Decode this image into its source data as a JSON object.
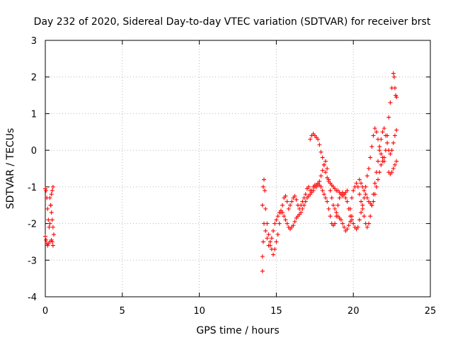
{
  "chart_data": {
    "type": "scatter",
    "title": "Day 232 of 2020, Sidereal Day-to-day VTEC variation (SDTVAR) for receiver brst",
    "xlabel": "GPS time / hours",
    "ylabel": "SDTVAR / TECUs",
    "xlim": [
      0,
      25
    ],
    "ylim": [
      -4,
      3
    ],
    "xticks": [
      "0",
      "5",
      "10",
      "15",
      "20",
      "25"
    ],
    "yticks": [
      "-4",
      "-3",
      "-2",
      "-1",
      "0",
      "1",
      "2",
      "3"
    ],
    "grid": true,
    "marker": "+",
    "color": "#ff0000",
    "series": [
      {
        "points": [
          [
            0.0,
            -1.05
          ],
          [
            0.05,
            -1.1
          ],
          [
            0.1,
            -1.3
          ],
          [
            0.15,
            -1.6
          ],
          [
            0.2,
            -1.9
          ],
          [
            0.25,
            -2.1
          ],
          [
            0.3,
            -2.0
          ],
          [
            0.35,
            -1.5
          ],
          [
            0.4,
            -1.2
          ],
          [
            0.45,
            -1.1
          ],
          [
            0.5,
            -1.0
          ],
          [
            0.0,
            -2.35
          ],
          [
            0.05,
            -2.45
          ],
          [
            0.1,
            -2.55
          ],
          [
            0.15,
            -2.6
          ],
          [
            0.2,
            -2.55
          ],
          [
            0.3,
            -2.5
          ],
          [
            0.4,
            -2.45
          ],
          [
            0.45,
            -2.5
          ],
          [
            0.5,
            -2.6
          ],
          [
            0.3,
            -1.3
          ],
          [
            0.35,
            -1.5
          ],
          [
            0.4,
            -1.7
          ],
          [
            0.45,
            -1.9
          ],
          [
            0.5,
            -2.1
          ],
          [
            0.55,
            -2.3
          ],
          [
            14.1,
            -3.3
          ],
          [
            14.1,
            -2.9
          ],
          [
            14.15,
            -2.5
          ],
          [
            14.2,
            -2.0
          ],
          [
            14.1,
            -1.5
          ],
          [
            14.15,
            -1.0
          ],
          [
            14.2,
            -0.8
          ],
          [
            14.25,
            -1.1
          ],
          [
            14.3,
            -1.6
          ],
          [
            14.4,
            -2.0
          ],
          [
            14.5,
            -2.3
          ],
          [
            14.6,
            -2.5
          ],
          [
            14.7,
            -2.7
          ],
          [
            14.8,
            -2.85
          ],
          [
            14.9,
            -2.7
          ],
          [
            15.0,
            -2.5
          ],
          [
            15.1,
            -2.3
          ],
          [
            15.2,
            -2.0
          ],
          [
            15.3,
            -1.7
          ],
          [
            15.4,
            -1.5
          ],
          [
            15.5,
            -1.3
          ],
          [
            15.6,
            -1.25
          ],
          [
            15.7,
            -1.4
          ],
          [
            15.8,
            -1.6
          ],
          [
            15.9,
            -1.5
          ],
          [
            16.0,
            -1.4
          ],
          [
            16.1,
            -1.3
          ],
          [
            16.2,
            -1.25
          ],
          [
            16.3,
            -1.35
          ],
          [
            16.4,
            -1.5
          ],
          [
            16.5,
            -1.6
          ],
          [
            16.6,
            -1.5
          ],
          [
            16.7,
            -1.4
          ],
          [
            16.8,
            -1.3
          ],
          [
            16.9,
            -1.2
          ],
          [
            17.0,
            -1.05
          ],
          [
            17.1,
            -1.0
          ],
          [
            17.2,
            -1.1
          ],
          [
            17.3,
            -1.15
          ],
          [
            17.4,
            -1.1
          ],
          [
            17.5,
            -1.0
          ],
          [
            17.6,
            -0.95
          ],
          [
            17.7,
            -0.9
          ],
          [
            17.8,
            -0.95
          ],
          [
            17.9,
            -1.0
          ],
          [
            18.0,
            -1.1
          ],
          [
            18.1,
            -1.2
          ],
          [
            18.2,
            -1.3
          ],
          [
            18.3,
            -1.4
          ],
          [
            18.4,
            -1.6
          ],
          [
            18.5,
            -1.8
          ],
          [
            18.6,
            -2.0
          ],
          [
            18.7,
            -2.05
          ],
          [
            18.8,
            -2.0
          ],
          [
            18.9,
            -1.8
          ],
          [
            19.0,
            -1.5
          ],
          [
            19.1,
            -1.3
          ],
          [
            19.2,
            -1.2
          ],
          [
            19.3,
            -1.15
          ],
          [
            19.4,
            -1.2
          ],
          [
            19.5,
            -1.3
          ],
          [
            19.6,
            -1.4
          ],
          [
            19.7,
            -1.6
          ],
          [
            19.8,
            -1.8
          ],
          [
            19.9,
            -1.9
          ],
          [
            20.0,
            -2.0
          ],
          [
            20.1,
            -2.1
          ],
          [
            20.2,
            -2.15
          ],
          [
            20.3,
            -2.1
          ],
          [
            20.4,
            -1.9
          ],
          [
            20.5,
            -1.7
          ],
          [
            20.6,
            -1.5
          ],
          [
            20.7,
            -1.3
          ],
          [
            20.8,
            -1.0
          ],
          [
            20.9,
            -0.7
          ],
          [
            21.0,
            -0.5
          ],
          [
            21.1,
            -0.2
          ],
          [
            21.2,
            0.1
          ],
          [
            21.3,
            0.4
          ],
          [
            21.4,
            0.6
          ],
          [
            21.5,
            0.5
          ],
          [
            21.6,
            0.3
          ],
          [
            21.7,
            0.1
          ],
          [
            21.8,
            -0.1
          ],
          [
            21.9,
            -0.2
          ],
          [
            22.0,
            -0.3
          ],
          [
            22.1,
            0.0
          ],
          [
            22.2,
            0.4
          ],
          [
            22.3,
            0.9
          ],
          [
            22.4,
            1.3
          ],
          [
            22.5,
            1.7
          ],
          [
            22.6,
            2.1
          ],
          [
            22.65,
            2.0
          ],
          [
            22.7,
            1.7
          ],
          [
            22.75,
            1.5
          ],
          [
            22.8,
            1.45
          ],
          [
            14.3,
            -2.2
          ],
          [
            14.4,
            -2.4
          ],
          [
            14.5,
            -2.6
          ],
          [
            14.6,
            -2.6
          ],
          [
            14.7,
            -2.4
          ],
          [
            14.8,
            -2.2
          ],
          [
            14.9,
            -2.0
          ],
          [
            15.0,
            -1.9
          ],
          [
            15.1,
            -1.8
          ],
          [
            15.2,
            -1.7
          ],
          [
            15.3,
            -1.65
          ],
          [
            15.4,
            -1.7
          ],
          [
            15.5,
            -1.8
          ],
          [
            15.6,
            -1.9
          ],
          [
            15.7,
            -2.0
          ],
          [
            15.8,
            -2.1
          ],
          [
            15.9,
            -2.15
          ],
          [
            16.0,
            -2.1
          ],
          [
            16.1,
            -2.05
          ],
          [
            16.2,
            -1.95
          ],
          [
            16.3,
            -1.85
          ],
          [
            16.4,
            -1.8
          ],
          [
            16.5,
            -1.75
          ],
          [
            16.6,
            -1.7
          ],
          [
            16.7,
            -1.6
          ],
          [
            16.8,
            -1.5
          ],
          [
            16.9,
            -1.4
          ],
          [
            17.0,
            -1.3
          ],
          [
            17.1,
            -1.25
          ],
          [
            17.2,
            -1.2
          ],
          [
            17.3,
            -1.1
          ],
          [
            17.4,
            -1.0
          ],
          [
            17.5,
            -0.95
          ],
          [
            17.6,
            -1.0
          ],
          [
            17.7,
            -0.95
          ],
          [
            17.8,
            -0.85
          ],
          [
            17.9,
            -0.7
          ],
          [
            18.0,
            -0.55
          ],
          [
            18.1,
            -0.4
          ],
          [
            18.2,
            -0.3
          ],
          [
            18.3,
            -0.5
          ],
          [
            18.4,
            -0.8
          ],
          [
            18.5,
            -1.1
          ],
          [
            18.6,
            -1.3
          ],
          [
            18.7,
            -1.5
          ],
          [
            18.8,
            -1.6
          ],
          [
            18.9,
            -1.7
          ],
          [
            19.0,
            -1.8
          ],
          [
            19.1,
            -1.85
          ],
          [
            19.2,
            -1.9
          ],
          [
            19.3,
            -2.0
          ],
          [
            19.4,
            -2.1
          ],
          [
            19.5,
            -2.2
          ],
          [
            19.6,
            -2.15
          ],
          [
            19.7,
            -2.05
          ],
          [
            19.8,
            -1.95
          ],
          [
            19.9,
            -1.8
          ],
          [
            17.2,
            0.3
          ],
          [
            17.3,
            0.4
          ],
          [
            17.4,
            0.45
          ],
          [
            17.5,
            0.4
          ],
          [
            17.6,
            0.35
          ],
          [
            17.7,
            0.3
          ],
          [
            17.8,
            0.15
          ],
          [
            17.9,
            -0.05
          ],
          [
            18.0,
            -0.2
          ],
          [
            18.1,
            -0.4
          ],
          [
            18.2,
            -0.6
          ],
          [
            18.3,
            -0.75
          ],
          [
            18.4,
            -0.85
          ],
          [
            18.5,
            -0.9
          ],
          [
            18.6,
            -0.95
          ],
          [
            18.7,
            -1.0
          ],
          [
            18.8,
            -1.05
          ],
          [
            18.9,
            -1.1
          ],
          [
            19.0,
            -1.1
          ],
          [
            19.1,
            -1.15
          ],
          [
            19.2,
            -1.2
          ],
          [
            19.3,
            -1.25
          ],
          [
            19.4,
            -1.2
          ],
          [
            19.5,
            -1.15
          ],
          [
            19.6,
            -1.1
          ],
          [
            19.8,
            -1.6
          ],
          [
            19.9,
            -1.3
          ],
          [
            20.0,
            -1.1
          ],
          [
            20.1,
            -1.0
          ],
          [
            20.2,
            -0.9
          ],
          [
            20.3,
            -1.0
          ],
          [
            20.4,
            -1.2
          ],
          [
            20.5,
            -1.4
          ],
          [
            20.6,
            -1.6
          ],
          [
            20.7,
            -1.8
          ],
          [
            20.8,
            -2.0
          ],
          [
            20.9,
            -2.1
          ],
          [
            21.0,
            -2.0
          ],
          [
            21.1,
            -1.8
          ],
          [
            21.2,
            -1.5
          ],
          [
            21.3,
            -1.2
          ],
          [
            21.4,
            -0.9
          ],
          [
            21.5,
            -0.6
          ],
          [
            21.6,
            -0.3
          ],
          [
            21.7,
            0.0
          ],
          [
            21.8,
            0.3
          ],
          [
            21.9,
            0.5
          ],
          [
            22.0,
            0.6
          ],
          [
            22.1,
            0.4
          ],
          [
            22.2,
            0.2
          ],
          [
            22.3,
            0.0
          ],
          [
            22.4,
            -0.1
          ],
          [
            22.5,
            0.0
          ],
          [
            22.6,
            0.2
          ],
          [
            22.7,
            0.4
          ],
          [
            22.8,
            0.55
          ],
          [
            20.4,
            -0.8
          ],
          [
            20.5,
            -0.9
          ],
          [
            20.6,
            -1.0
          ],
          [
            20.7,
            -1.1
          ],
          [
            20.8,
            -1.2
          ],
          [
            20.9,
            -1.3
          ],
          [
            21.0,
            -1.4
          ],
          [
            21.1,
            -1.45
          ],
          [
            21.2,
            -1.5
          ],
          [
            21.3,
            -1.4
          ],
          [
            21.4,
            -1.2
          ],
          [
            21.5,
            -1.0
          ],
          [
            21.6,
            -0.8
          ],
          [
            21.7,
            -0.6
          ],
          [
            21.8,
            -0.4
          ],
          [
            21.9,
            -0.3
          ],
          [
            22.0,
            -0.2
          ],
          [
            22.3,
            -0.6
          ],
          [
            22.4,
            -0.65
          ],
          [
            22.5,
            -0.6
          ],
          [
            22.6,
            -0.5
          ],
          [
            22.7,
            -0.4
          ],
          [
            22.8,
            -0.3
          ]
        ]
      }
    ]
  }
}
